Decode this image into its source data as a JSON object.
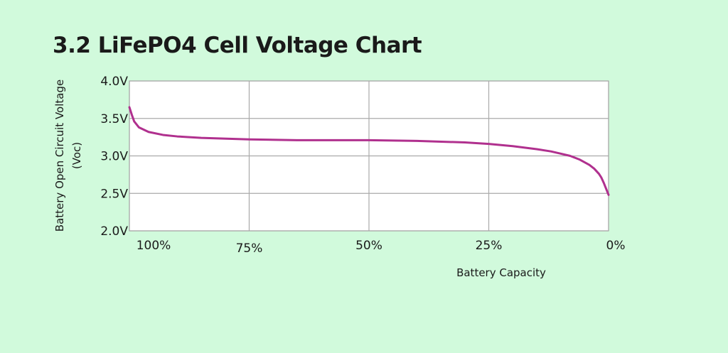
{
  "colors": {
    "background": "#d1fadc",
    "plot_background": "#ffffff",
    "grid": "#aaaaaa",
    "line": "#b0308e"
  },
  "chart_data": {
    "type": "line",
    "title": "3.2 LiFePO4 Cell Voltage Chart",
    "xlabel": "Battery Capacity",
    "ylabel_line1": "Battery Open Circuit Voltage",
    "ylabel_line2": "(Voc)",
    "x_ticks": [
      "100%",
      "75%",
      "50%",
      "25%",
      "0%"
    ],
    "y_ticks": [
      "4.0V",
      "3.5V",
      "3.0V",
      "2.5V",
      "2.0V"
    ],
    "xlim": [
      100,
      0
    ],
    "ylim": [
      2.0,
      4.0
    ],
    "grid": true,
    "series": [
      {
        "x": [
          100,
          99.5,
          99,
          98,
          96,
          93,
          90,
          85,
          75,
          65,
          50,
          40,
          30,
          25,
          20,
          15,
          12,
          10,
          8,
          6,
          4,
          3,
          2,
          1.5,
          1,
          0.5,
          0
        ],
        "values": [
          3.65,
          3.55,
          3.46,
          3.38,
          3.32,
          3.28,
          3.26,
          3.24,
          3.22,
          3.21,
          3.21,
          3.2,
          3.18,
          3.16,
          3.13,
          3.09,
          3.06,
          3.03,
          3.0,
          2.95,
          2.88,
          2.83,
          2.76,
          2.71,
          2.64,
          2.56,
          2.48
        ]
      }
    ]
  }
}
